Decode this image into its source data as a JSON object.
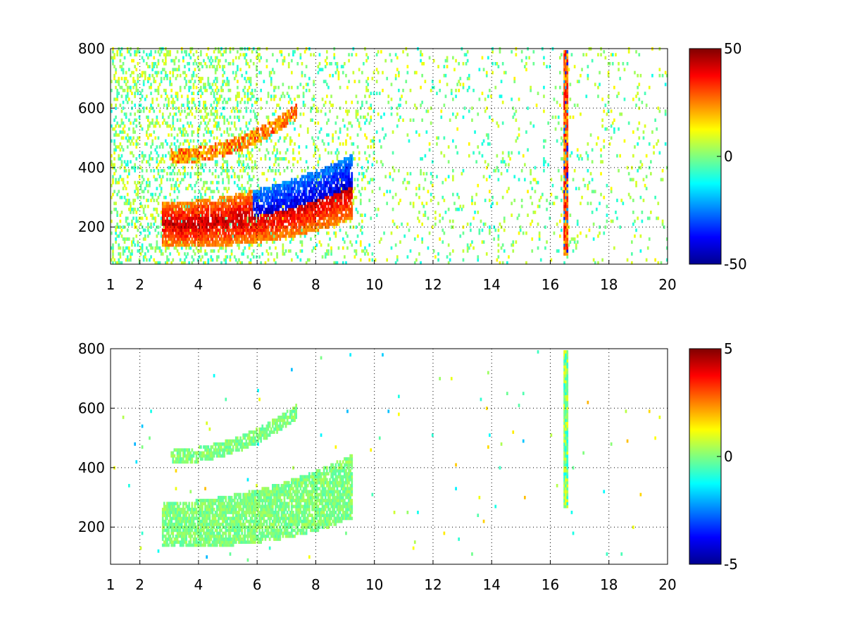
{
  "chart_data": [
    {
      "type": "heatmap",
      "colormap": "jet",
      "xlim": [
        1,
        20
      ],
      "ylim": [
        75,
        800
      ],
      "x_ticks": [
        "1",
        "2",
        "4",
        "6",
        "8",
        "10",
        "12",
        "14",
        "16",
        "18",
        "20"
      ],
      "y_ticks": [
        "200",
        "400",
        "600",
        "800"
      ],
      "grid": true,
      "colorbar": {
        "range": [
          -50,
          50
        ],
        "ticks": [
          "50",
          "0",
          "-50"
        ],
        "position": "right"
      },
      "features": [
        {
          "name": "lower band",
          "x_range": [
            2.7,
            9.2
          ],
          "y_at_start": 205,
          "y_at_end": 330,
          "strength": "strong"
        },
        {
          "name": "upper band",
          "x_range": [
            3.0,
            7.3
          ],
          "y_at_start": 430,
          "y_at_end": 560,
          "strength": "moderate"
        },
        {
          "name": "vertical stripe",
          "x": 16.5,
          "y_range": [
            100,
            790
          ],
          "strength": "strong"
        }
      ]
    },
    {
      "type": "heatmap",
      "colormap": "jet",
      "xlim": [
        1,
        20
      ],
      "ylim": [
        75,
        800
      ],
      "x_ticks": [
        "1",
        "2",
        "4",
        "6",
        "8",
        "10",
        "12",
        "14",
        "16",
        "18",
        "20"
      ],
      "y_ticks": [
        "200",
        "400",
        "600",
        "800"
      ],
      "grid": true,
      "colorbar": {
        "range": [
          -5,
          5
        ],
        "ticks": [
          "5",
          "0",
          "-5"
        ],
        "position": "right"
      },
      "features": [
        {
          "name": "lower band",
          "x_range": [
            2.7,
            9.2
          ],
          "y_at_start": 205,
          "y_at_end": 330,
          "strength": "weak"
        },
        {
          "name": "upper band",
          "x_range": [
            3.0,
            7.3
          ],
          "y_at_start": 430,
          "y_at_end": 560,
          "strength": "weak"
        },
        {
          "name": "vertical stripe",
          "x": 16.5,
          "y_range": [
            260,
            790
          ],
          "strength": "weak"
        }
      ]
    }
  ]
}
